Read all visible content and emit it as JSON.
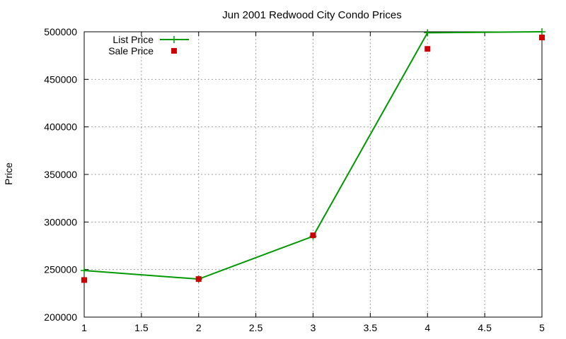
{
  "chart_data": {
    "type": "line",
    "title": "Jun 2001 Redwood City Condo Prices",
    "xlabel": "",
    "ylabel": "Price",
    "xlim": [
      1,
      5
    ],
    "ylim": [
      200000,
      500000
    ],
    "xticks": [
      1,
      1.5,
      2,
      2.5,
      3,
      3.5,
      4,
      4.5,
      5
    ],
    "xtick_labels": [
      "1",
      "1.5",
      "2",
      "2.5",
      "3",
      "3.5",
      "4",
      "4.5",
      "5"
    ],
    "yticks": [
      200000,
      250000,
      300000,
      350000,
      400000,
      450000,
      500000
    ],
    "ytick_labels": [
      "200000",
      "250000",
      "300000",
      "350000",
      "400000",
      "450000",
      "500000"
    ],
    "grid": true,
    "legend_position": "top-left",
    "series": [
      {
        "name": "List Price",
        "style": "lines+points",
        "marker": "plus",
        "color": "#009900",
        "x": [
          1,
          2,
          3,
          4,
          5
        ],
        "y": [
          249000,
          240000,
          285000,
          499000,
          500000
        ]
      },
      {
        "name": "Sale Price",
        "style": "points",
        "marker": "square",
        "color": "#cc0000",
        "x": [
          1,
          2,
          3,
          4,
          5
        ],
        "y": [
          239000,
          240000,
          286000,
          482000,
          494000
        ]
      }
    ]
  }
}
